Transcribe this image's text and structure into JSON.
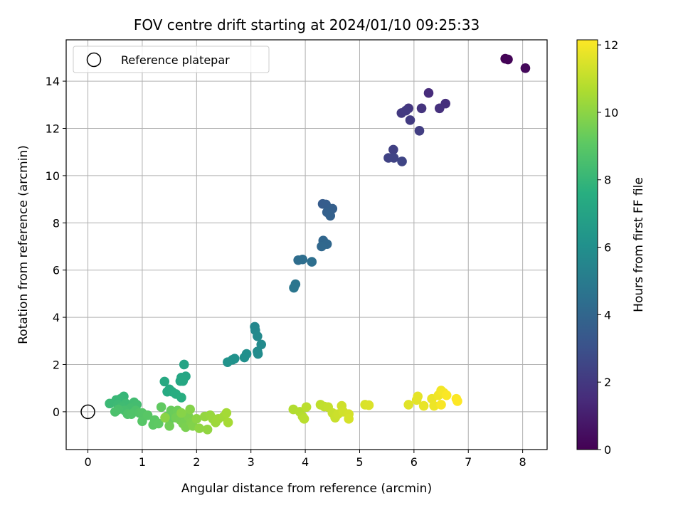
{
  "chart_data": {
    "type": "scatter",
    "title": "FOV centre drift starting at 2024/01/10 09:25:33",
    "xlabel": "Angular distance from reference (arcmin)",
    "ylabel": "Rotation from reference (arcmin)",
    "xlim": [
      -0.4,
      8.45
    ],
    "ylim": [
      -1.6,
      15.75
    ],
    "xticks": [
      0,
      1,
      2,
      3,
      4,
      5,
      6,
      7,
      8
    ],
    "xtick_labels": [
      "0",
      "1",
      "2",
      "3",
      "4",
      "5",
      "6",
      "7",
      "8"
    ],
    "yticks": [
      0,
      2,
      4,
      6,
      8,
      10,
      12,
      14
    ],
    "ytick_labels": [
      "0",
      "2",
      "4",
      "6",
      "8",
      "10",
      "12",
      "14"
    ],
    "grid": true,
    "legend": {
      "placement": "upper-left",
      "entries": [
        {
          "label": "Reference platepar",
          "marker": "open-circle",
          "color": "#000000"
        }
      ]
    },
    "reference_point": {
      "x": 0,
      "y": 0
    },
    "colorbar": {
      "label": "Hours from first FF file",
      "colormap": "viridis",
      "range": [
        0,
        12.15
      ],
      "ticks": [
        0,
        2,
        4,
        6,
        8,
        10,
        12
      ],
      "tick_labels": [
        "0",
        "2",
        "4",
        "6",
        "8",
        "10",
        "12"
      ]
    },
    "points": [
      {
        "x": 7.68,
        "y": 14.95,
        "h": 0.05
      },
      {
        "x": 7.73,
        "y": 14.92,
        "h": 0.1
      },
      {
        "x": 8.05,
        "y": 14.55,
        "h": 0.25
      },
      {
        "x": 6.27,
        "y": 13.5,
        "h": 1.5
      },
      {
        "x": 6.58,
        "y": 13.05,
        "h": 1.6
      },
      {
        "x": 6.47,
        "y": 12.85,
        "h": 1.7
      },
      {
        "x": 6.14,
        "y": 12.85,
        "h": 1.8
      },
      {
        "x": 5.9,
        "y": 12.85,
        "h": 1.9
      },
      {
        "x": 5.77,
        "y": 12.65,
        "h": 2.0
      },
      {
        "x": 5.85,
        "y": 12.75,
        "h": 2.05
      },
      {
        "x": 5.93,
        "y": 12.35,
        "h": 2.1
      },
      {
        "x": 6.1,
        "y": 11.9,
        "h": 2.2
      },
      {
        "x": 5.62,
        "y": 11.1,
        "h": 2.3
      },
      {
        "x": 5.53,
        "y": 10.75,
        "h": 2.4
      },
      {
        "x": 5.63,
        "y": 10.75,
        "h": 2.45
      },
      {
        "x": 5.78,
        "y": 10.6,
        "h": 2.5
      },
      {
        "x": 4.32,
        "y": 8.8,
        "h": 3.5
      },
      {
        "x": 4.38,
        "y": 8.78,
        "h": 3.55
      },
      {
        "x": 4.45,
        "y": 8.6,
        "h": 3.6
      },
      {
        "x": 4.5,
        "y": 8.6,
        "h": 3.65
      },
      {
        "x": 4.4,
        "y": 8.45,
        "h": 3.7
      },
      {
        "x": 4.46,
        "y": 8.3,
        "h": 3.75
      },
      {
        "x": 4.33,
        "y": 7.25,
        "h": 4.0
      },
      {
        "x": 4.4,
        "y": 7.1,
        "h": 4.05
      },
      {
        "x": 4.3,
        "y": 7.0,
        "h": 4.1
      },
      {
        "x": 3.87,
        "y": 6.42,
        "h": 4.3
      },
      {
        "x": 3.95,
        "y": 6.45,
        "h": 4.35
      },
      {
        "x": 4.12,
        "y": 6.35,
        "h": 4.4
      },
      {
        "x": 3.82,
        "y": 5.4,
        "h": 4.7
      },
      {
        "x": 3.79,
        "y": 5.25,
        "h": 4.75
      },
      {
        "x": 3.07,
        "y": 3.6,
        "h": 5.6
      },
      {
        "x": 3.08,
        "y": 3.45,
        "h": 5.65
      },
      {
        "x": 3.12,
        "y": 3.2,
        "h": 5.7
      },
      {
        "x": 3.19,
        "y": 2.85,
        "h": 5.75
      },
      {
        "x": 3.12,
        "y": 2.55,
        "h": 5.8
      },
      {
        "x": 3.13,
        "y": 2.45,
        "h": 5.85
      },
      {
        "x": 2.92,
        "y": 2.45,
        "h": 6.0
      },
      {
        "x": 2.88,
        "y": 2.3,
        "h": 6.05
      },
      {
        "x": 2.7,
        "y": 2.25,
        "h": 6.1
      },
      {
        "x": 2.66,
        "y": 2.2,
        "h": 6.15
      },
      {
        "x": 2.57,
        "y": 2.1,
        "h": 6.2
      },
      {
        "x": 1.77,
        "y": 2.0,
        "h": 7.0
      },
      {
        "x": 1.8,
        "y": 1.5,
        "h": 7.1
      },
      {
        "x": 1.72,
        "y": 1.45,
        "h": 7.15
      },
      {
        "x": 1.7,
        "y": 1.3,
        "h": 7.2
      },
      {
        "x": 1.75,
        "y": 1.3,
        "h": 7.25
      },
      {
        "x": 1.41,
        "y": 1.28,
        "h": 7.3
      },
      {
        "x": 1.5,
        "y": 0.95,
        "h": 7.35
      },
      {
        "x": 1.46,
        "y": 0.85,
        "h": 7.4
      },
      {
        "x": 1.55,
        "y": 0.85,
        "h": 7.45
      },
      {
        "x": 1.62,
        "y": 0.75,
        "h": 7.5
      },
      {
        "x": 1.72,
        "y": 0.6,
        "h": 7.55
      },
      {
        "x": 0.66,
        "y": 0.65,
        "h": 8.0
      },
      {
        "x": 0.6,
        "y": 0.55,
        "h": 8.05
      },
      {
        "x": 0.52,
        "y": 0.5,
        "h": 8.1
      },
      {
        "x": 0.4,
        "y": 0.35,
        "h": 8.15
      },
      {
        "x": 0.55,
        "y": 0.3,
        "h": 8.2
      },
      {
        "x": 0.7,
        "y": 0.35,
        "h": 8.25
      },
      {
        "x": 0.62,
        "y": 0.2,
        "h": 8.3
      },
      {
        "x": 0.85,
        "y": 0.4,
        "h": 8.35
      },
      {
        "x": 0.9,
        "y": 0.3,
        "h": 8.4
      },
      {
        "x": 0.78,
        "y": 0.15,
        "h": 8.45
      },
      {
        "x": 0.68,
        "y": 0.05,
        "h": 8.5
      },
      {
        "x": 0.56,
        "y": 0.1,
        "h": 8.55
      },
      {
        "x": 0.5,
        "y": 0.0,
        "h": 8.6
      },
      {
        "x": 0.88,
        "y": 0.05,
        "h": 8.65
      },
      {
        "x": 0.73,
        "y": -0.1,
        "h": 8.7
      },
      {
        "x": 0.8,
        "y": -0.1,
        "h": 8.75
      },
      {
        "x": 0.95,
        "y": -0.05,
        "h": 8.8
      },
      {
        "x": 1.0,
        "y": -0.05,
        "h": 8.85
      },
      {
        "x": 1.0,
        "y": -0.4,
        "h": 8.9
      },
      {
        "x": 1.1,
        "y": -0.15,
        "h": 8.95
      },
      {
        "x": 1.23,
        "y": -0.35,
        "h": 9.0
      },
      {
        "x": 1.2,
        "y": -0.55,
        "h": 9.05
      },
      {
        "x": 1.3,
        "y": -0.5,
        "h": 9.1
      },
      {
        "x": 1.35,
        "y": 0.2,
        "h": 9.15
      },
      {
        "x": 1.45,
        "y": -0.2,
        "h": 9.2
      },
      {
        "x": 1.5,
        "y": -0.35,
        "h": 9.25
      },
      {
        "x": 1.53,
        "y": 0.05,
        "h": 9.3
      },
      {
        "x": 1.6,
        "y": -0.05,
        "h": 9.35
      },
      {
        "x": 1.65,
        "y": 0.05,
        "h": 9.4
      },
      {
        "x": 1.5,
        "y": -0.6,
        "h": 9.45
      },
      {
        "x": 1.62,
        "y": -0.25,
        "h": 9.5
      },
      {
        "x": 1.7,
        "y": -0.35,
        "h": 9.55
      },
      {
        "x": 1.75,
        "y": -0.5,
        "h": 9.6
      },
      {
        "x": 1.8,
        "y": -0.65,
        "h": 9.65
      },
      {
        "x": 1.85,
        "y": -0.2,
        "h": 9.7
      },
      {
        "x": 1.9,
        "y": -0.45,
        "h": 9.75
      },
      {
        "x": 1.93,
        "y": -0.6,
        "h": 9.8
      },
      {
        "x": 1.88,
        "y": 0.1,
        "h": 9.85
      },
      {
        "x": 1.72,
        "y": -0.05,
        "h": 9.9
      },
      {
        "x": 1.42,
        "y": -0.25,
        "h": 9.95
      },
      {
        "x": 2.0,
        "y": -0.3,
        "h": 10.0
      },
      {
        "x": 2.05,
        "y": -0.7,
        "h": 10.05
      },
      {
        "x": 2.2,
        "y": -0.75,
        "h": 10.1
      },
      {
        "x": 2.15,
        "y": -0.2,
        "h": 10.15
      },
      {
        "x": 2.25,
        "y": -0.15,
        "h": 10.2
      },
      {
        "x": 2.3,
        "y": -0.3,
        "h": 10.25
      },
      {
        "x": 2.35,
        "y": -0.45,
        "h": 10.3
      },
      {
        "x": 2.4,
        "y": -0.3,
        "h": 10.35
      },
      {
        "x": 2.5,
        "y": -0.2,
        "h": 10.4
      },
      {
        "x": 2.55,
        "y": -0.05,
        "h": 10.45
      },
      {
        "x": 2.58,
        "y": -0.45,
        "h": 10.5
      },
      {
        "x": 3.78,
        "y": 0.1,
        "h": 10.7
      },
      {
        "x": 3.9,
        "y": 0.0,
        "h": 10.75
      },
      {
        "x": 3.95,
        "y": -0.2,
        "h": 10.8
      },
      {
        "x": 3.98,
        "y": -0.3,
        "h": 10.85
      },
      {
        "x": 4.02,
        "y": 0.2,
        "h": 10.9
      },
      {
        "x": 4.28,
        "y": 0.3,
        "h": 10.95
      },
      {
        "x": 4.35,
        "y": 0.22,
        "h": 11.0
      },
      {
        "x": 4.42,
        "y": 0.2,
        "h": 11.05
      },
      {
        "x": 4.5,
        "y": -0.05,
        "h": 11.1
      },
      {
        "x": 4.55,
        "y": -0.25,
        "h": 11.15
      },
      {
        "x": 4.6,
        "y": -0.1,
        "h": 11.2
      },
      {
        "x": 4.67,
        "y": 0.25,
        "h": 11.25
      },
      {
        "x": 4.7,
        "y": 0.0,
        "h": 11.3
      },
      {
        "x": 4.8,
        "y": -0.1,
        "h": 11.35
      },
      {
        "x": 4.8,
        "y": -0.3,
        "h": 11.4
      },
      {
        "x": 5.1,
        "y": 0.3,
        "h": 11.45
      },
      {
        "x": 5.17,
        "y": 0.28,
        "h": 11.5
      },
      {
        "x": 5.9,
        "y": 0.3,
        "h": 11.6
      },
      {
        "x": 6.05,
        "y": 0.5,
        "h": 11.65
      },
      {
        "x": 6.07,
        "y": 0.65,
        "h": 11.7
      },
      {
        "x": 6.18,
        "y": 0.25,
        "h": 11.75
      },
      {
        "x": 6.33,
        "y": 0.55,
        "h": 11.8
      },
      {
        "x": 6.37,
        "y": 0.25,
        "h": 11.85
      },
      {
        "x": 6.45,
        "y": 0.7,
        "h": 11.9
      },
      {
        "x": 6.5,
        "y": 0.9,
        "h": 11.95
      },
      {
        "x": 6.55,
        "y": 0.8,
        "h": 12.0
      },
      {
        "x": 6.5,
        "y": 0.3,
        "h": 12.05
      },
      {
        "x": 6.6,
        "y": 0.7,
        "h": 12.1
      },
      {
        "x": 6.78,
        "y": 0.55,
        "h": 12.12
      },
      {
        "x": 6.8,
        "y": 0.45,
        "h": 12.15
      }
    ]
  }
}
